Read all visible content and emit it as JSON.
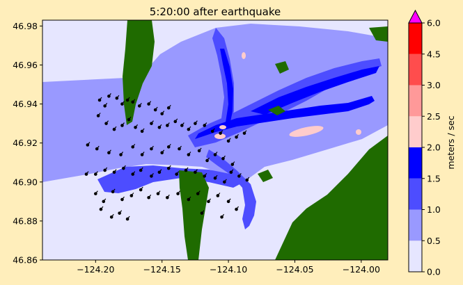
{
  "chart_data": {
    "type": "heatmap",
    "title": "5:20:00 after earthquake",
    "xlabel": "",
    "ylabel": "",
    "xlim": [
      -124.24,
      -123.98
    ],
    "ylim": [
      46.86,
      46.983
    ],
    "xticks": [
      -124.2,
      -124.15,
      -124.1,
      -124.05,
      -124.0
    ],
    "xtick_labels": [
      "−124.20",
      "−124.15",
      "−124.10",
      "−124.05",
      "−124.00"
    ],
    "yticks": [
      46.86,
      46.88,
      46.9,
      46.92,
      46.94,
      46.96,
      46.98
    ],
    "ytick_labels": [
      "46.86",
      "46.88",
      "46.90",
      "46.92",
      "46.94",
      "46.96",
      "46.98"
    ],
    "land_color": "#1f6b00",
    "colorbar": {
      "label": "meters / sec",
      "levels": [
        0.0,
        0.5,
        1.0,
        1.5,
        2.0,
        2.5,
        3.0,
        4.5,
        6.0
      ],
      "level_labels": [
        "0.0",
        "0.5",
        "1.0",
        "1.5",
        "2.0",
        "2.5",
        "3.0",
        "4.5",
        "6.0"
      ],
      "colors": [
        "#e6e6ff",
        "#9999ff",
        "#4d4dff",
        "#0000ff",
        "#ffcccc",
        "#ff9999",
        "#ff4d4d",
        "#ff0000"
      ],
      "extend_max_color": "#ff00ff"
    },
    "gauges": [
      [
        -124.197,
        46.942
      ],
      [
        -124.193,
        46.939
      ],
      [
        -124.19,
        46.944
      ],
      [
        -124.184,
        46.943
      ],
      [
        -124.18,
        46.94
      ],
      [
        -124.176,
        46.942
      ],
      [
        -124.172,
        46.941
      ],
      [
        -124.167,
        46.939
      ],
      [
        -124.16,
        46.94
      ],
      [
        -124.155,
        46.937
      ],
      [
        -124.15,
        46.935
      ],
      [
        -124.145,
        46.938
      ],
      [
        -124.198,
        46.934
      ],
      [
        -124.192,
        46.93
      ],
      [
        -124.186,
        46.927
      ],
      [
        -124.18,
        46.929
      ],
      [
        -124.175,
        46.932
      ],
      [
        -124.17,
        46.928
      ],
      [
        -124.165,
        46.926
      ],
      [
        -124.158,
        46.93
      ],
      [
        -124.152,
        46.928
      ],
      [
        -124.146,
        46.929
      ],
      [
        -124.14,
        46.931
      ],
      [
        -124.135,
        46.929
      ],
      [
        -124.13,
        46.927
      ],
      [
        -124.125,
        46.93
      ],
      [
        -124.118,
        46.929
      ],
      [
        -124.112,
        46.926
      ],
      [
        -124.106,
        46.925
      ],
      [
        -124.1,
        46.921
      ],
      [
        -124.094,
        46.923
      ],
      [
        -124.088,
        46.925
      ],
      [
        -124.206,
        46.919
      ],
      [
        -124.199,
        46.917
      ],
      [
        -124.19,
        46.915
      ],
      [
        -124.181,
        46.914
      ],
      [
        -124.172,
        46.918
      ],
      [
        -124.165,
        46.914
      ],
      [
        -124.158,
        46.917
      ],
      [
        -124.15,
        46.915
      ],
      [
        -124.145,
        46.918
      ],
      [
        -124.137,
        46.917
      ],
      [
        -124.13,
        46.914
      ],
      [
        -124.122,
        46.916
      ],
      [
        -124.116,
        46.911
      ],
      [
        -124.11,
        46.914
      ],
      [
        -124.104,
        46.912
      ],
      [
        -124.097,
        46.909
      ],
      [
        -124.207,
        46.904
      ],
      [
        -124.2,
        46.904
      ],
      [
        -124.193,
        46.906
      ],
      [
        -124.186,
        46.905
      ],
      [
        -124.179,
        46.907
      ],
      [
        -124.172,
        46.904
      ],
      [
        -124.166,
        46.906
      ],
      [
        -124.158,
        46.903
      ],
      [
        -124.152,
        46.905
      ],
      [
        -124.145,
        46.907
      ],
      [
        -124.139,
        46.904
      ],
      [
        -124.132,
        46.906
      ],
      [
        -124.125,
        46.905
      ],
      [
        -124.118,
        46.903
      ],
      [
        -124.11,
        46.902
      ],
      [
        -124.103,
        46.9
      ],
      [
        -124.098,
        46.905
      ],
      [
        -124.092,
        46.903
      ],
      [
        -124.086,
        46.901
      ],
      [
        -124.2,
        46.894
      ],
      [
        -124.194,
        46.89
      ],
      [
        -124.187,
        46.895
      ],
      [
        -124.18,
        46.891
      ],
      [
        -124.173,
        46.893
      ],
      [
        -124.166,
        46.896
      ],
      [
        -124.16,
        46.892
      ],
      [
        -124.153,
        46.894
      ],
      [
        -124.146,
        46.892
      ],
      [
        -124.138,
        46.894
      ],
      [
        -124.13,
        46.891
      ],
      [
        -124.123,
        46.894
      ],
      [
        -124.115,
        46.89
      ],
      [
        -124.108,
        46.893
      ],
      [
        -124.1,
        46.89
      ],
      [
        -124.094,
        46.886
      ],
      [
        -124.196,
        46.886
      ],
      [
        -124.188,
        46.882
      ],
      [
        -124.182,
        46.884
      ],
      [
        -124.176,
        46.881
      ],
      [
        -124.12,
        46.884
      ],
      [
        -124.105,
        46.882
      ]
    ]
  }
}
